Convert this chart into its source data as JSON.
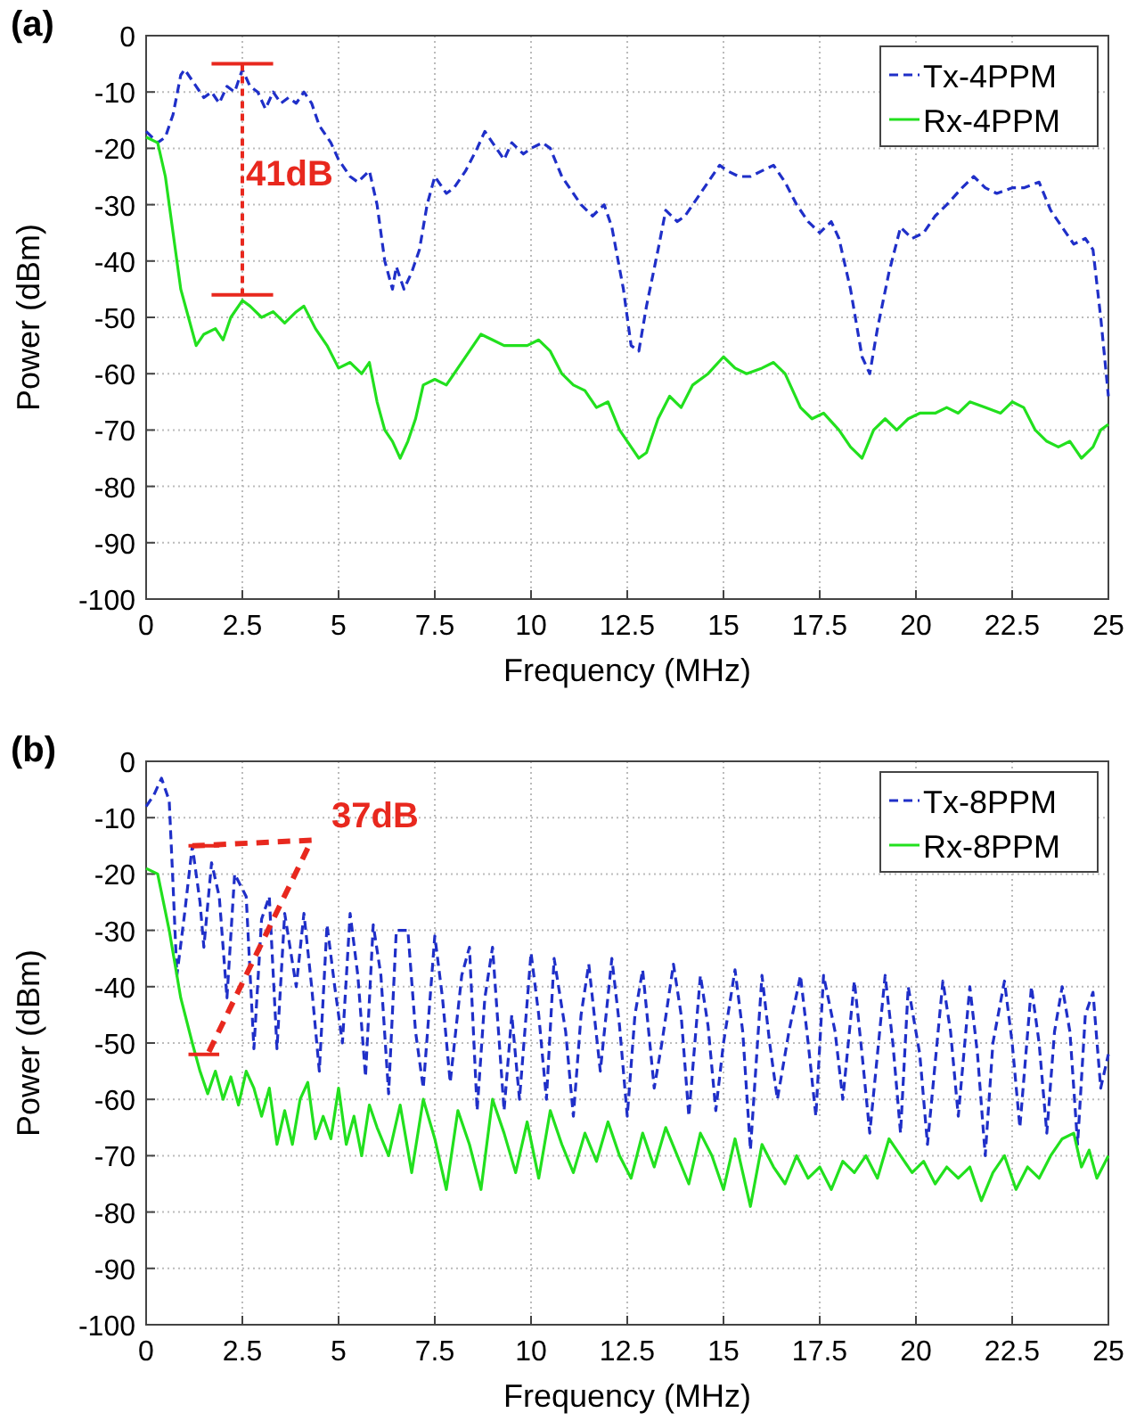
{
  "chart_data": [
    {
      "type": "line",
      "title": "(a)",
      "xlabel": "Frequency (MHz)",
      "ylabel": "Power (dBm)",
      "xlim": [
        0,
        25
      ],
      "ylim": [
        -100,
        0
      ],
      "xticks": [
        0,
        2.5,
        5,
        7.5,
        10,
        12.5,
        15,
        17.5,
        20,
        22.5,
        25
      ],
      "yticks": [
        -100,
        -90,
        -80,
        -70,
        -60,
        -50,
        -40,
        -30,
        -20,
        -10,
        0
      ],
      "grid": true,
      "legend": "top right",
      "annotations": [
        "41dB"
      ],
      "series": [
        {
          "name": "Tx-4PPM",
          "color": "#1f2fc8",
          "line_style": "dashed",
          "x": [
            0,
            0.3,
            0.5,
            0.7,
            0.9,
            1.0,
            1.3,
            1.5,
            1.7,
            1.9,
            2.1,
            2.3,
            2.5,
            2.7,
            2.9,
            3.1,
            3.3,
            3.5,
            3.7,
            3.9,
            4.1,
            4.3,
            4.5,
            4.8,
            5.0,
            5.3,
            5.5,
            5.8,
            6.0,
            6.2,
            6.4,
            6.5,
            6.7,
            6.9,
            7.1,
            7.3,
            7.5,
            7.8,
            8.0,
            8.3,
            8.6,
            8.8,
            9.0,
            9.3,
            9.5,
            9.8,
            10.0,
            10.3,
            10.5,
            10.8,
            11.0,
            11.3,
            11.6,
            11.9,
            12.1,
            12.4,
            12.6,
            12.8,
            13.0,
            13.3,
            13.5,
            13.8,
            14.0,
            14.3,
            14.6,
            14.9,
            15.1,
            15.4,
            15.7,
            16.0,
            16.3,
            16.6,
            16.9,
            17.2,
            17.5,
            17.8,
            18.0,
            18.3,
            18.6,
            18.8,
            19.0,
            19.3,
            19.6,
            19.9,
            20.2,
            20.5,
            20.8,
            21.2,
            21.5,
            21.8,
            22.1,
            22.5,
            22.8,
            23.2,
            23.5,
            23.8,
            24.1,
            24.4,
            24.6,
            24.8,
            25.0
          ],
          "values": [
            -17,
            -19,
            -18,
            -14,
            -7,
            -6,
            -9,
            -11,
            -10,
            -12,
            -9,
            -10,
            -6,
            -9,
            -10,
            -13,
            -10,
            -12,
            -11,
            -12,
            -10,
            -12,
            -16,
            -19,
            -22,
            -25,
            -26,
            -24,
            -30,
            -40,
            -45,
            -41,
            -45,
            -42,
            -38,
            -30,
            -25,
            -28,
            -27,
            -24,
            -20,
            -17,
            -19,
            -22,
            -19,
            -21,
            -20,
            -19,
            -20,
            -25,
            -27,
            -30,
            -32,
            -30,
            -34,
            -45,
            -55,
            -56,
            -48,
            -38,
            -31,
            -33,
            -32,
            -29,
            -26,
            -23,
            -24,
            -25,
            -25,
            -24,
            -23,
            -26,
            -30,
            -33,
            -35,
            -33,
            -36,
            -45,
            -57,
            -60,
            -52,
            -42,
            -34,
            -36,
            -35,
            -32,
            -30,
            -27,
            -25,
            -27,
            -28,
            -27,
            -27,
            -26,
            -31,
            -34,
            -37,
            -36,
            -38,
            -50,
            -64
          ]
        },
        {
          "name": "Rx-4PPM",
          "color": "#22e01e",
          "line_style": "solid",
          "x": [
            0,
            0.3,
            0.5,
            0.7,
            0.9,
            1.1,
            1.3,
            1.5,
            1.8,
            2.0,
            2.2,
            2.5,
            2.7,
            3.0,
            3.3,
            3.6,
            3.9,
            4.1,
            4.4,
            4.7,
            5.0,
            5.3,
            5.6,
            5.8,
            6.0,
            6.2,
            6.4,
            6.6,
            6.8,
            7.0,
            7.2,
            7.5,
            7.8,
            8.1,
            8.4,
            8.7,
            9.0,
            9.3,
            9.6,
            9.9,
            10.2,
            10.5,
            10.8,
            11.1,
            11.4,
            11.7,
            12.0,
            12.3,
            12.6,
            12.8,
            13.0,
            13.3,
            13.6,
            13.9,
            14.2,
            14.6,
            15.0,
            15.3,
            15.6,
            16.0,
            16.3,
            16.6,
            17.0,
            17.3,
            17.6,
            18.0,
            18.3,
            18.6,
            18.9,
            19.2,
            19.5,
            19.8,
            20.1,
            20.5,
            20.8,
            21.1,
            21.4,
            21.8,
            22.2,
            22.5,
            22.8,
            23.1,
            23.4,
            23.7,
            24.0,
            24.3,
            24.6,
            24.8,
            25.0
          ],
          "values": [
            -18,
            -19,
            -25,
            -35,
            -45,
            -50,
            -55,
            -53,
            -52,
            -54,
            -50,
            -47,
            -48,
            -50,
            -49,
            -51,
            -49,
            -48,
            -52,
            -55,
            -59,
            -58,
            -60,
            -58,
            -65,
            -70,
            -72,
            -75,
            -72,
            -68,
            -62,
            -61,
            -62,
            -59,
            -56,
            -53,
            -54,
            -55,
            -55,
            -55,
            -54,
            -56,
            -60,
            -62,
            -63,
            -66,
            -65,
            -70,
            -73,
            -75,
            -74,
            -68,
            -64,
            -66,
            -62,
            -60,
            -57,
            -59,
            -60,
            -59,
            -58,
            -60,
            -66,
            -68,
            -67,
            -70,
            -73,
            -75,
            -70,
            -68,
            -70,
            -68,
            -67,
            -67,
            -66,
            -67,
            -65,
            -66,
            -67,
            -65,
            -66,
            -70,
            -72,
            -73,
            -72,
            -75,
            -73,
            -70,
            -69
          ]
        }
      ]
    },
    {
      "type": "line",
      "title": "(b)",
      "xlabel": "Frequency (MHz)",
      "ylabel": "Power (dBm)",
      "xlim": [
        0,
        25
      ],
      "ylim": [
        -100,
        0
      ],
      "xticks": [
        0,
        2.5,
        5,
        7.5,
        10,
        12.5,
        15,
        17.5,
        20,
        22.5,
        25
      ],
      "yticks": [
        -100,
        -90,
        -80,
        -70,
        -60,
        -50,
        -40,
        -30,
        -20,
        -10,
        0
      ],
      "grid": true,
      "legend": "top right",
      "annotations": [
        "37dB"
      ],
      "series": [
        {
          "name": "Tx-8PPM",
          "color": "#1f2fc8",
          "line_style": "dashed",
          "x": [
            0,
            0.2,
            0.4,
            0.6,
            0.7,
            0.8,
            1.0,
            1.2,
            1.4,
            1.5,
            1.7,
            1.9,
            2.1,
            2.3,
            2.6,
            2.8,
            3.0,
            3.2,
            3.4,
            3.6,
            3.9,
            4.1,
            4.3,
            4.5,
            4.7,
            4.9,
            5.1,
            5.3,
            5.5,
            5.7,
            5.9,
            6.1,
            6.3,
            6.5,
            6.8,
            7.0,
            7.2,
            7.5,
            7.7,
            7.9,
            8.2,
            8.4,
            8.6,
            8.8,
            9.0,
            9.3,
            9.5,
            9.7,
            10.0,
            10.2,
            10.4,
            10.6,
            10.9,
            11.1,
            11.3,
            11.5,
            11.8,
            12.1,
            12.3,
            12.5,
            12.7,
            12.9,
            13.2,
            13.4,
            13.7,
            13.9,
            14.1,
            14.4,
            14.6,
            14.8,
            15.0,
            15.3,
            15.5,
            15.7,
            16.0,
            16.2,
            16.4,
            16.7,
            17.0,
            17.2,
            17.4,
            17.6,
            17.9,
            18.1,
            18.4,
            18.6,
            18.8,
            19.2,
            19.4,
            19.6,
            19.8,
            20.1,
            20.3,
            20.7,
            20.9,
            21.1,
            21.4,
            21.6,
            21.8,
            22.0,
            22.3,
            22.5,
            22.7,
            23.0,
            23.2,
            23.4,
            23.6,
            23.8,
            24.0,
            24.2,
            24.4,
            24.6,
            24.8,
            25.0
          ],
          "values": [
            -8,
            -6,
            -3,
            -7,
            -22,
            -38,
            -27,
            -15,
            -25,
            -33,
            -18,
            -24,
            -42,
            -20,
            -24,
            -51,
            -28,
            -24,
            -51,
            -27,
            -40,
            -27,
            -40,
            -55,
            -29,
            -40,
            -50,
            -27,
            -38,
            -56,
            -29,
            -38,
            -59,
            -30,
            -30,
            -48,
            -58,
            -31,
            -42,
            -57,
            -38,
            -33,
            -62,
            -42,
            -33,
            -62,
            -45,
            -60,
            -34,
            -45,
            -60,
            -35,
            -48,
            -63,
            -45,
            -36,
            -55,
            -35,
            -47,
            -63,
            -45,
            -37,
            -58,
            -50,
            -36,
            -45,
            -63,
            -38,
            -47,
            -62,
            -50,
            -37,
            -48,
            -69,
            -38,
            -50,
            -60,
            -48,
            -38,
            -50,
            -63,
            -38,
            -48,
            -60,
            -39,
            -52,
            -66,
            -38,
            -50,
            -66,
            -40,
            -52,
            -68,
            -39,
            -48,
            -63,
            -40,
            -52,
            -70,
            -50,
            -39,
            -50,
            -65,
            -40,
            -50,
            -66,
            -48,
            -40,
            -48,
            -68,
            -45,
            -41,
            -58,
            -52
          ]
        },
        {
          "name": "Rx-8PPM",
          "color": "#22e01e",
          "line_style": "solid",
          "x": [
            0,
            0.3,
            0.6,
            0.9,
            1.2,
            1.4,
            1.6,
            1.8,
            2.0,
            2.2,
            2.4,
            2.6,
            2.8,
            3.0,
            3.2,
            3.4,
            3.6,
            3.8,
            4.0,
            4.2,
            4.4,
            4.6,
            4.8,
            5.0,
            5.2,
            5.4,
            5.6,
            5.8,
            6.0,
            6.3,
            6.6,
            6.9,
            7.2,
            7.5,
            7.8,
            8.1,
            8.4,
            8.7,
            9.0,
            9.3,
            9.6,
            9.9,
            10.2,
            10.5,
            10.8,
            11.1,
            11.4,
            11.7,
            12.0,
            12.3,
            12.6,
            12.9,
            13.2,
            13.5,
            13.8,
            14.1,
            14.4,
            14.7,
            15.0,
            15.3,
            15.7,
            16.0,
            16.3,
            16.6,
            16.9,
            17.2,
            17.5,
            17.8,
            18.1,
            18.4,
            18.7,
            19.0,
            19.3,
            19.6,
            19.9,
            20.2,
            20.5,
            20.8,
            21.1,
            21.4,
            21.7,
            22.0,
            22.3,
            22.6,
            22.9,
            23.2,
            23.5,
            23.8,
            24.1,
            24.3,
            24.5,
            24.7,
            25.0
          ],
          "values": [
            -19,
            -20,
            -30,
            -42,
            -50,
            -55,
            -59,
            -55,
            -60,
            -56,
            -61,
            -55,
            -58,
            -63,
            -58,
            -68,
            -62,
            -68,
            -60,
            -57,
            -67,
            -63,
            -67,
            -58,
            -68,
            -63,
            -70,
            -61,
            -65,
            -70,
            -61,
            -73,
            -60,
            -67,
            -76,
            -62,
            -68,
            -76,
            -60,
            -66,
            -73,
            -64,
            -74,
            -62,
            -68,
            -73,
            -66,
            -71,
            -64,
            -70,
            -74,
            -66,
            -72,
            -65,
            -70,
            -75,
            -66,
            -70,
            -76,
            -67,
            -79,
            -68,
            -72,
            -75,
            -70,
            -74,
            -72,
            -76,
            -71,
            -73,
            -70,
            -74,
            -67,
            -70,
            -73,
            -71,
            -75,
            -72,
            -74,
            -72,
            -78,
            -73,
            -70,
            -76,
            -72,
            -74,
            -70,
            -67,
            -66,
            -72,
            -69,
            -74,
            -70
          ]
        }
      ]
    }
  ]
}
